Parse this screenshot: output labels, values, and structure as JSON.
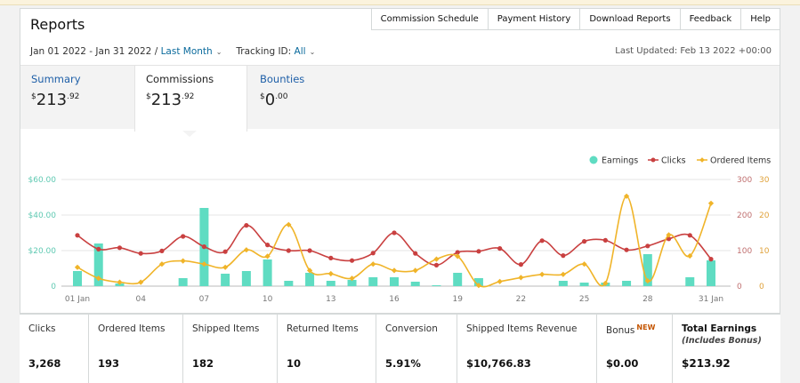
{
  "header": {
    "title": "Reports",
    "nav": [
      "Commission Schedule",
      "Payment History",
      "Download Reports",
      "Feedback",
      "Help"
    ]
  },
  "filters": {
    "date_range": "Jan 01 2022 - Jan 31 2022 /",
    "period": "Last Month",
    "tracking_label": "Tracking ID:",
    "tracking_value": "All"
  },
  "last_updated": "Last Updated: Feb 13 2022 +00:00",
  "tabs": [
    {
      "label": "Summary",
      "currency": "$",
      "whole": "213",
      "cents": ".92"
    },
    {
      "label": "Commissions",
      "currency": "$",
      "whole": "213",
      "cents": ".92"
    },
    {
      "label": "Bounties",
      "currency": "$",
      "whole": "0",
      "cents": ".00"
    }
  ],
  "chart_data": {
    "type": "bar",
    "legend": [
      "Earnings",
      "Clicks",
      "Ordered Items"
    ],
    "legend_position": "top-right",
    "colors": {
      "Earnings": "#5fdcc2",
      "Clicks": "#c94040",
      "Ordered Items": "#f0b429"
    },
    "x_tick_labels": [
      "01 Jan",
      "04",
      "07",
      "10",
      "13",
      "16",
      "19",
      "22",
      "25",
      "28",
      "31 Jan"
    ],
    "x_tick_days": [
      1,
      4,
      7,
      10,
      13,
      16,
      19,
      22,
      25,
      28,
      31
    ],
    "days": [
      1,
      2,
      3,
      4,
      5,
      6,
      7,
      8,
      9,
      10,
      11,
      12,
      13,
      14,
      15,
      16,
      17,
      18,
      19,
      20,
      21,
      22,
      23,
      24,
      25,
      26,
      27,
      28,
      29,
      30,
      31
    ],
    "y_left": {
      "ticks": [
        "0",
        "$20.00",
        "$40.00",
        "$60.00"
      ],
      "range": [
        0,
        60
      ]
    },
    "y_clicks": {
      "ticks": [
        "0",
        "100",
        "200",
        "300"
      ],
      "range": [
        0,
        300
      ]
    },
    "y_items": {
      "ticks": [
        "0",
        "10",
        "20",
        "30"
      ],
      "range": [
        0,
        30
      ]
    },
    "grid": true,
    "series": [
      {
        "name": "Earnings",
        "type": "bar",
        "values": [
          8.5,
          24,
          1.5,
          0,
          0,
          4.5,
          44,
          7,
          8.5,
          15,
          3,
          7.5,
          3,
          3.5,
          5,
          5,
          2.5,
          0.5,
          7.5,
          4.5,
          0,
          0,
          0,
          3,
          2,
          2,
          3,
          18,
          0,
          5,
          14.5
        ]
      },
      {
        "name": "Clicks",
        "type": "line",
        "values": [
          143,
          104,
          108,
          92,
          99,
          140,
          111,
          97,
          171,
          116,
          100,
          100,
          79,
          72,
          93,
          150,
          92,
          59,
          95,
          98,
          106,
          61,
          128,
          86,
          126,
          129,
          102,
          113,
          133,
          143,
          76
        ]
      },
      {
        "name": "Ordered Items",
        "type": "line",
        "values": [
          5.3,
          2.2,
          1.1,
          1.1,
          6.2,
          7.1,
          6.2,
          5.3,
          10.2,
          8.4,
          17.3,
          4.4,
          3.5,
          2.2,
          6.2,
          4.4,
          4.4,
          7.6,
          8.4,
          0.2,
          1.3,
          2.4,
          3.3,
          3.3,
          6.2,
          0.8,
          25.3,
          1.5,
          14.4,
          8.5,
          23.3
        ]
      }
    ]
  },
  "stats": [
    {
      "label": "Clicks",
      "value": "3,268"
    },
    {
      "label": "Ordered Items",
      "value": "193"
    },
    {
      "label": "Shipped Items",
      "value": "182"
    },
    {
      "label": "Returned Items",
      "value": "10"
    },
    {
      "label": "Conversion",
      "value": "5.91%"
    },
    {
      "label": "Shipped Items Revenue",
      "value": "$10,766.83"
    },
    {
      "label": "Bonus",
      "badge": "NEW",
      "value": "$0.00"
    },
    {
      "label": "Total Earnings",
      "sublabel": "(Includes Bonus)",
      "value": "$213.92"
    }
  ]
}
